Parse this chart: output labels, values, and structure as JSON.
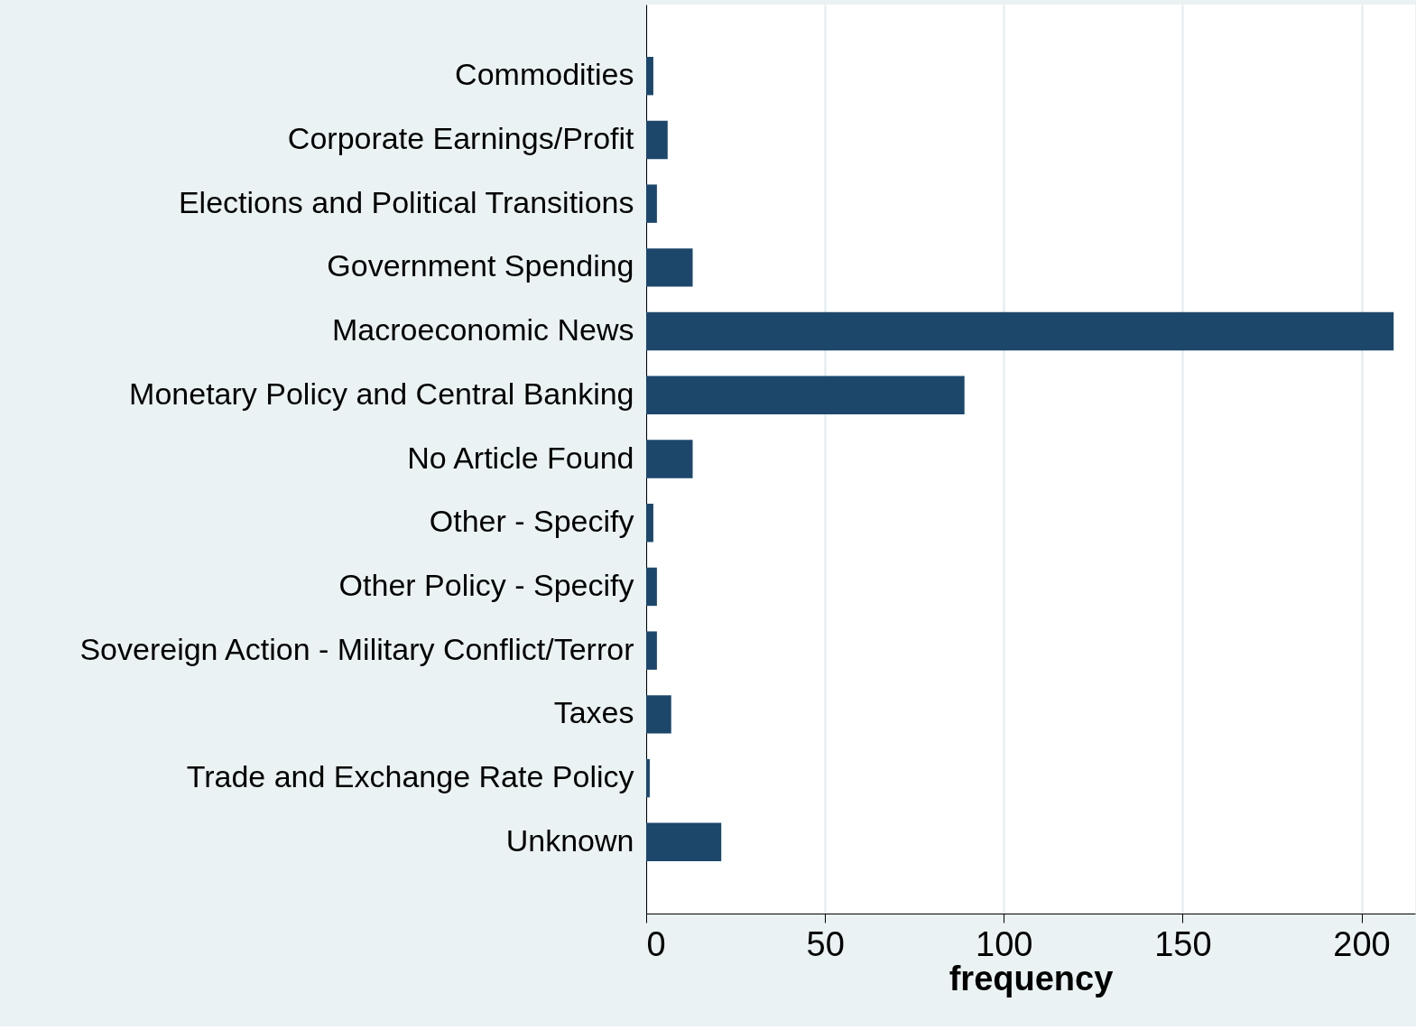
{
  "chart_data": {
    "type": "bar",
    "orientation": "horizontal",
    "xlabel": "frequency",
    "categories": [
      "Commodities",
      "Corporate Earnings/Profit",
      "Elections and Political Transitions",
      "Government Spending",
      "Macroeconomic News",
      "Monetary Policy and Central Banking",
      "No Article Found",
      "Other - Specify",
      "Other Policy - Specify",
      "Sovereign Action - Military Conflict/Terror",
      "Taxes",
      "Trade and Exchange Rate Policy",
      "Unknown"
    ],
    "values": [
      2,
      6,
      3,
      13,
      209,
      89,
      13,
      2,
      3,
      3,
      7,
      1,
      21
    ],
    "color": "#1c476b",
    "xlim": [
      0,
      215
    ],
    "xticks": [
      0,
      50,
      100,
      150,
      200
    ],
    "grid": "x"
  }
}
